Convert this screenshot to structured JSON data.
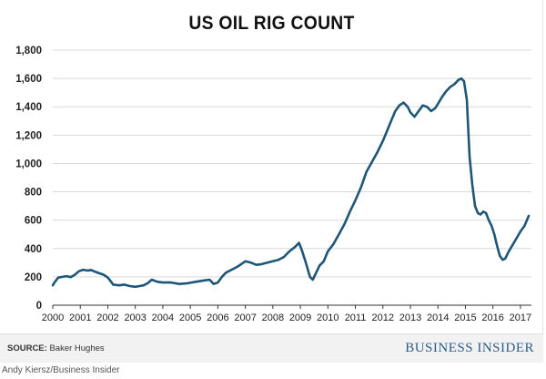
{
  "chart_data": {
    "type": "line",
    "title": "US OIL RIG COUNT",
    "xlabel": "",
    "ylabel": "",
    "ylim": [
      0,
      1800
    ],
    "xlim": [
      2000,
      2017.4
    ],
    "yticks": [
      "0",
      "200",
      "400",
      "600",
      "800",
      "1,000",
      "1,200",
      "1,400",
      "1,600",
      "1,800"
    ],
    "xticks": [
      "2000",
      "2001",
      "2002",
      "2003",
      "2004",
      "2005",
      "2006",
      "2007",
      "2008",
      "2009",
      "2010",
      "2011",
      "2012",
      "2013",
      "2014",
      "2015",
      "2016",
      "2017"
    ],
    "grid": true,
    "line_color": "#1e5677",
    "series": [
      {
        "x": [
          2000.0,
          2000.08,
          2000.2,
          2000.35,
          2000.5,
          2000.65,
          2000.8,
          2000.95,
          2001.1,
          2001.25,
          2001.4,
          2001.55,
          2001.7,
          2001.85,
          2002.0,
          2002.2,
          2002.4,
          2002.6,
          2002.8,
          2003.0,
          2003.15,
          2003.3,
          2003.45,
          2003.6,
          2003.8,
          2004.0,
          2004.3,
          2004.6,
          2004.9,
          2005.2,
          2005.5,
          2005.7,
          2005.85,
          2006.0,
          2006.15,
          2006.3,
          2006.5,
          2006.7,
          2006.85,
          2007.0,
          2007.2,
          2007.4,
          2007.6,
          2007.8,
          2008.0,
          2008.2,
          2008.4,
          2008.6,
          2008.8,
          2008.95,
          2009.05,
          2009.2,
          2009.35,
          2009.45,
          2009.55,
          2009.7,
          2009.85,
          2010.0,
          2010.2,
          2010.4,
          2010.6,
          2010.8,
          2011.0,
          2011.2,
          2011.4,
          2011.6,
          2011.8,
          2012.0,
          2012.15,
          2012.3,
          2012.45,
          2012.6,
          2012.75,
          2012.9,
          2013.0,
          2013.15,
          2013.3,
          2013.45,
          2013.6,
          2013.75,
          2013.9,
          2014.0,
          2014.15,
          2014.3,
          2014.45,
          2014.6,
          2014.75,
          2014.85,
          2014.95,
          2015.05,
          2015.15,
          2015.25,
          2015.35,
          2015.45,
          2015.55,
          2015.65,
          2015.75,
          2015.85,
          2015.95,
          2016.05,
          2016.15,
          2016.25,
          2016.35,
          2016.45,
          2016.55,
          2016.7,
          2016.85,
          2017.0,
          2017.15,
          2017.3
        ],
        "y": [
          140,
          165,
          195,
          200,
          205,
          198,
          215,
          240,
          250,
          245,
          248,
          235,
          225,
          215,
          195,
          145,
          140,
          145,
          135,
          130,
          135,
          140,
          155,
          180,
          165,
          160,
          160,
          150,
          155,
          165,
          175,
          180,
          150,
          160,
          200,
          230,
          250,
          270,
          290,
          310,
          300,
          285,
          290,
          300,
          310,
          320,
          340,
          380,
          410,
          440,
          390,
          300,
          200,
          180,
          220,
          280,
          310,
          380,
          430,
          500,
          570,
          660,
          740,
          830,
          940,
          1010,
          1080,
          1160,
          1230,
          1300,
          1370,
          1410,
          1430,
          1400,
          1360,
          1330,
          1370,
          1410,
          1400,
          1370,
          1390,
          1420,
          1470,
          1510,
          1540,
          1560,
          1590,
          1600,
          1580,
          1450,
          1050,
          850,
          700,
          650,
          640,
          660,
          650,
          600,
          560,
          500,
          420,
          350,
          320,
          330,
          370,
          420,
          470,
          520,
          560,
          630
        ]
      }
    ]
  },
  "footer": {
    "source_label": "SOURCE:",
    "source_value": "Baker Hughes",
    "brand": "BUSINESS INSIDER"
  },
  "credit": "Andy Kiersz/Business Insider"
}
